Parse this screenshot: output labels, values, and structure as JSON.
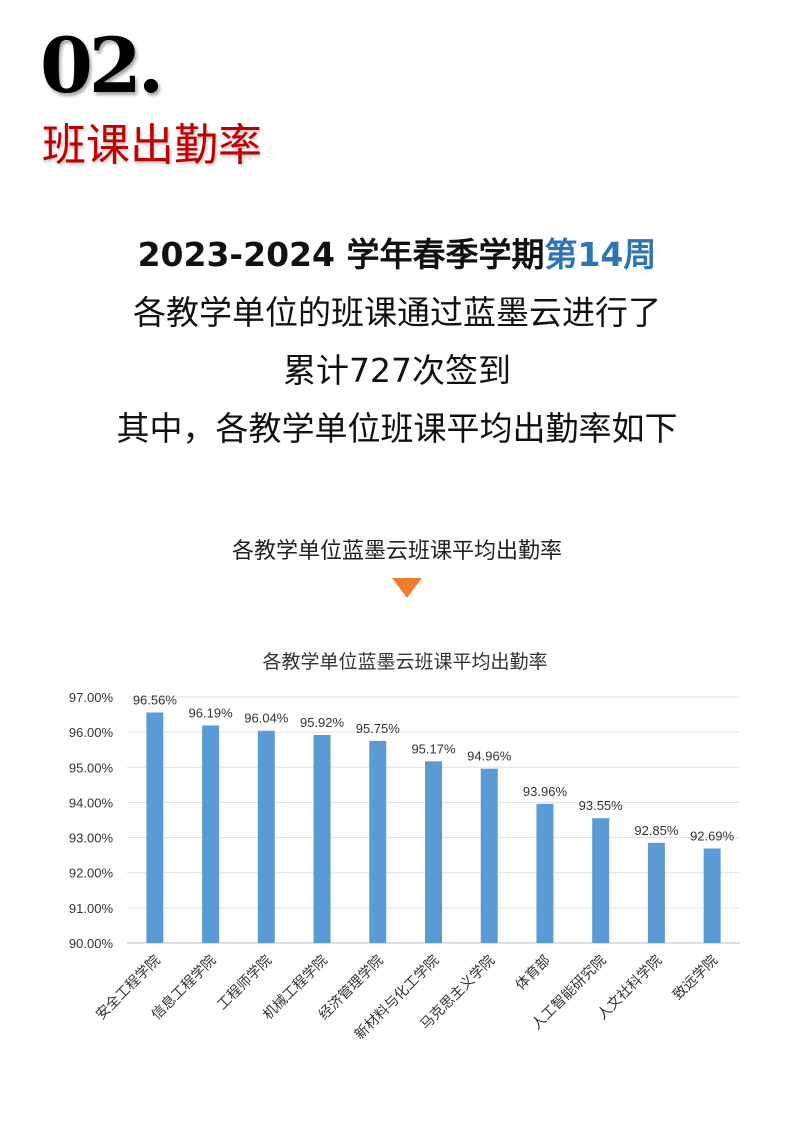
{
  "header": {
    "number": "02.",
    "section_title": "班课出勤率"
  },
  "intro": {
    "line1_prefix": "2023-2024 学年春季学期",
    "line1_accent": "第14周",
    "line2": "各教学单位的班课通过蓝墨云进行了",
    "line3": "累计727次签到",
    "line4": "其中，各教学单位班课平均出勤率如下"
  },
  "section_caption": "各教学单位蓝墨云班课平均出勤率",
  "colors": {
    "accent": "#2e75b6",
    "bar": "#5b9bd5",
    "marker": "#ed7d31",
    "title_red": "#c00000"
  },
  "chart_data": {
    "type": "bar",
    "title": "各教学单位蓝墨云班课平均出勤率",
    "categories": [
      "安全工程学院",
      "信息工程学院",
      "工程师学院",
      "机械工程学院",
      "经济管理学院",
      "新材料与化工学院",
      "马克思主义学院",
      "体育部",
      "人工智能研究院",
      "人文社科学院",
      "致远学院"
    ],
    "values": [
      96.56,
      96.19,
      96.04,
      95.92,
      95.75,
      95.17,
      94.96,
      93.96,
      93.55,
      92.85,
      92.69
    ],
    "data_labels": [
      "96.56%",
      "96.19%",
      "96.04%",
      "95.92%",
      "95.75%",
      "95.17%",
      "94.96%",
      "93.96%",
      "93.55%",
      "92.85%",
      "92.69%"
    ],
    "ylim": [
      90,
      97
    ],
    "yticks": [
      "90.00%",
      "91.00%",
      "92.00%",
      "93.00%",
      "94.00%",
      "95.00%",
      "96.00%",
      "97.00%"
    ],
    "grid": true,
    "legend": "none"
  }
}
